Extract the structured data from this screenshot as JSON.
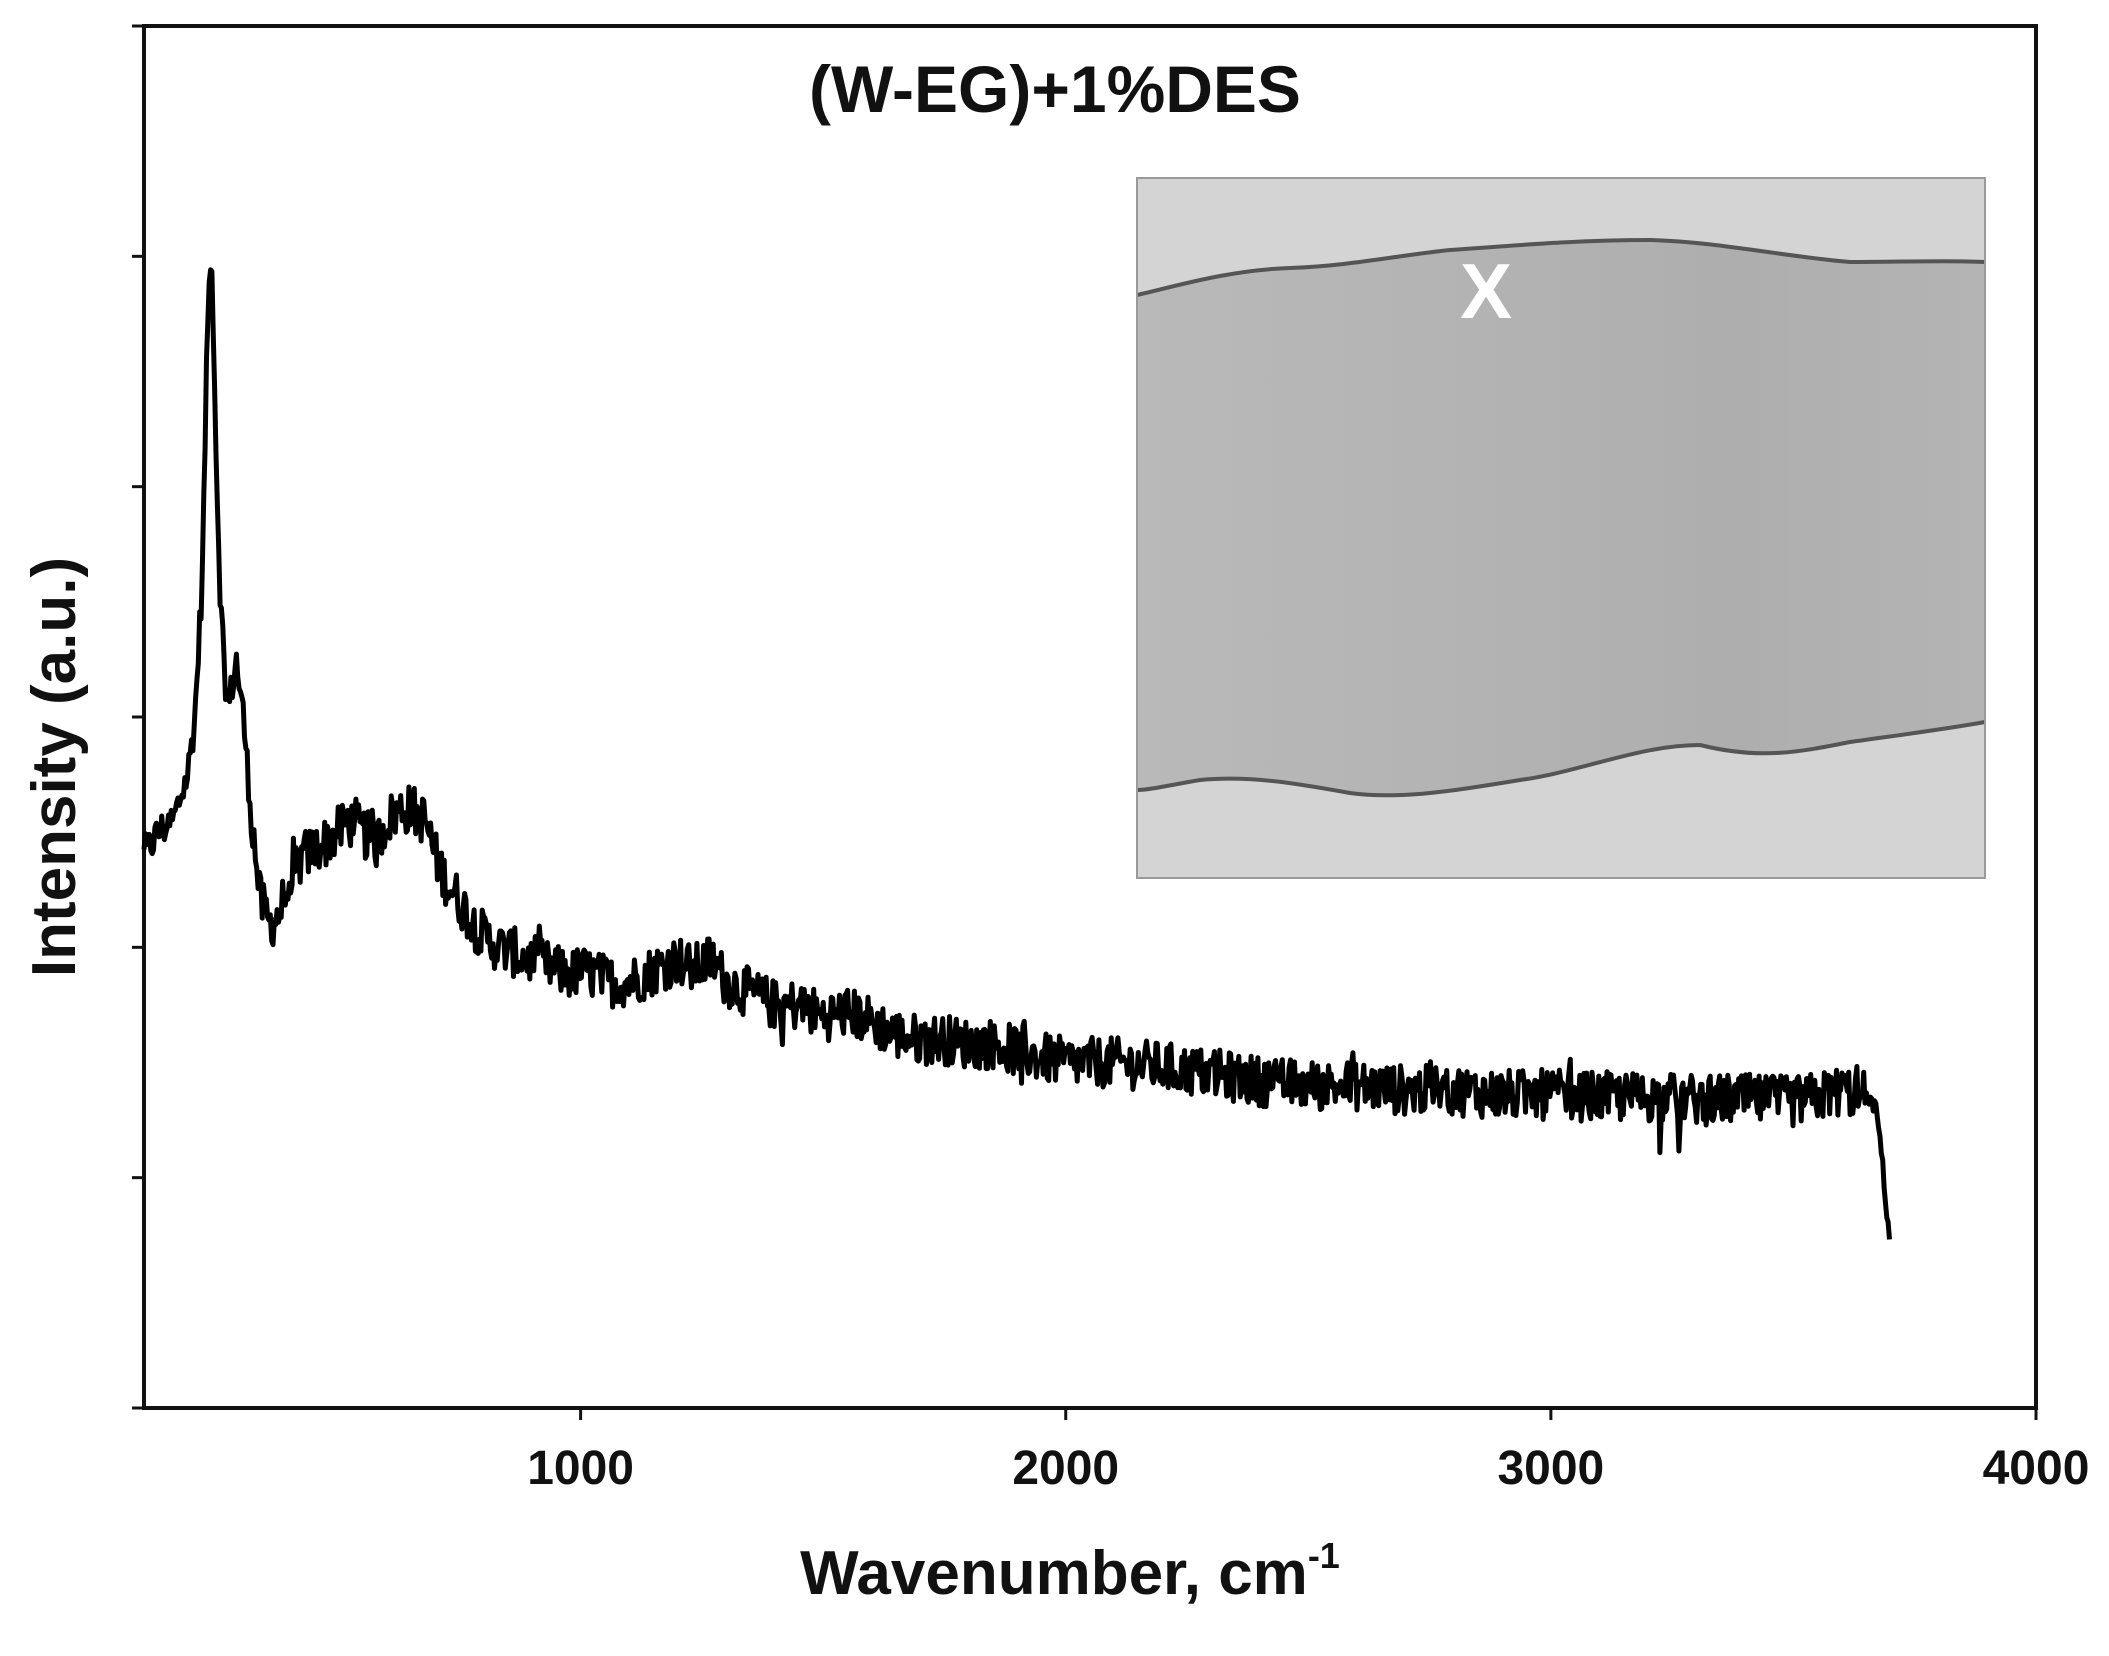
{
  "chart_data": {
    "type": "line",
    "title": "(W-EG)+1%DES",
    "xlabel": "Wavenumber, cm",
    "xlabel_superscript": "-1",
    "ylabel": "Intensity (a.u.)",
    "xlim": [
      100,
      4000
    ],
    "ylim": [
      0,
      6
    ],
    "x_ticks": [
      1000,
      2000,
      3000,
      4000
    ],
    "y_ticks_labeled": false,
    "grid": false,
    "legend": "none",
    "line_color": "#000000",
    "series": [
      {
        "x": [
          100,
          130,
          160,
          190,
          205,
          220,
          232,
          240,
          248,
          256,
          265,
          275,
          290,
          305,
          320,
          340,
          360,
          380,
          400,
          430,
          470,
          500,
          520,
          550,
          580,
          600,
          630,
          650,
          680,
          700,
          720,
          750,
          780,
          800,
          830,
          860,
          890,
          920,
          950,
          980,
          1000,
          1030,
          1060,
          1100,
          1150,
          1200,
          1230,
          1270,
          1300,
          1350,
          1400,
          1450,
          1500,
          1550,
          1600,
          1650,
          1700,
          1750,
          1800,
          1850,
          1900,
          1950,
          2000,
          2100,
          2200,
          2300,
          2400,
          2500,
          2600,
          2700,
          2800,
          2900,
          3000,
          3100,
          3200,
          3300,
          3400,
          3500,
          3550,
          3600,
          3650,
          3670,
          3680,
          3690,
          3700
        ],
        "y": [
          2.4,
          2.5,
          2.55,
          2.75,
          3.0,
          3.6,
          4.8,
          5.0,
          4.2,
          3.6,
          3.2,
          3.05,
          3.25,
          3.0,
          2.6,
          2.2,
          2.1,
          2.15,
          2.3,
          2.4,
          2.45,
          2.5,
          2.55,
          2.5,
          2.45,
          2.55,
          2.6,
          2.6,
          2.55,
          2.4,
          2.3,
          2.2,
          2.1,
          2.05,
          2.0,
          1.98,
          1.95,
          1.93,
          1.9,
          1.88,
          1.9,
          1.88,
          1.85,
          1.85,
          1.9,
          1.95,
          1.9,
          1.95,
          1.85,
          1.8,
          1.75,
          1.75,
          1.7,
          1.72,
          1.68,
          1.62,
          1.6,
          1.6,
          1.58,
          1.58,
          1.55,
          1.52,
          1.5,
          1.5,
          1.48,
          1.45,
          1.42,
          1.4,
          1.4,
          1.38,
          1.38,
          1.36,
          1.36,
          1.35,
          1.35,
          1.34,
          1.34,
          1.33,
          1.35,
          1.38,
          1.35,
          1.3,
          1.15,
          0.9,
          0.7
        ]
      }
    ],
    "inset": {
      "description_visible_label": "X"
    }
  }
}
